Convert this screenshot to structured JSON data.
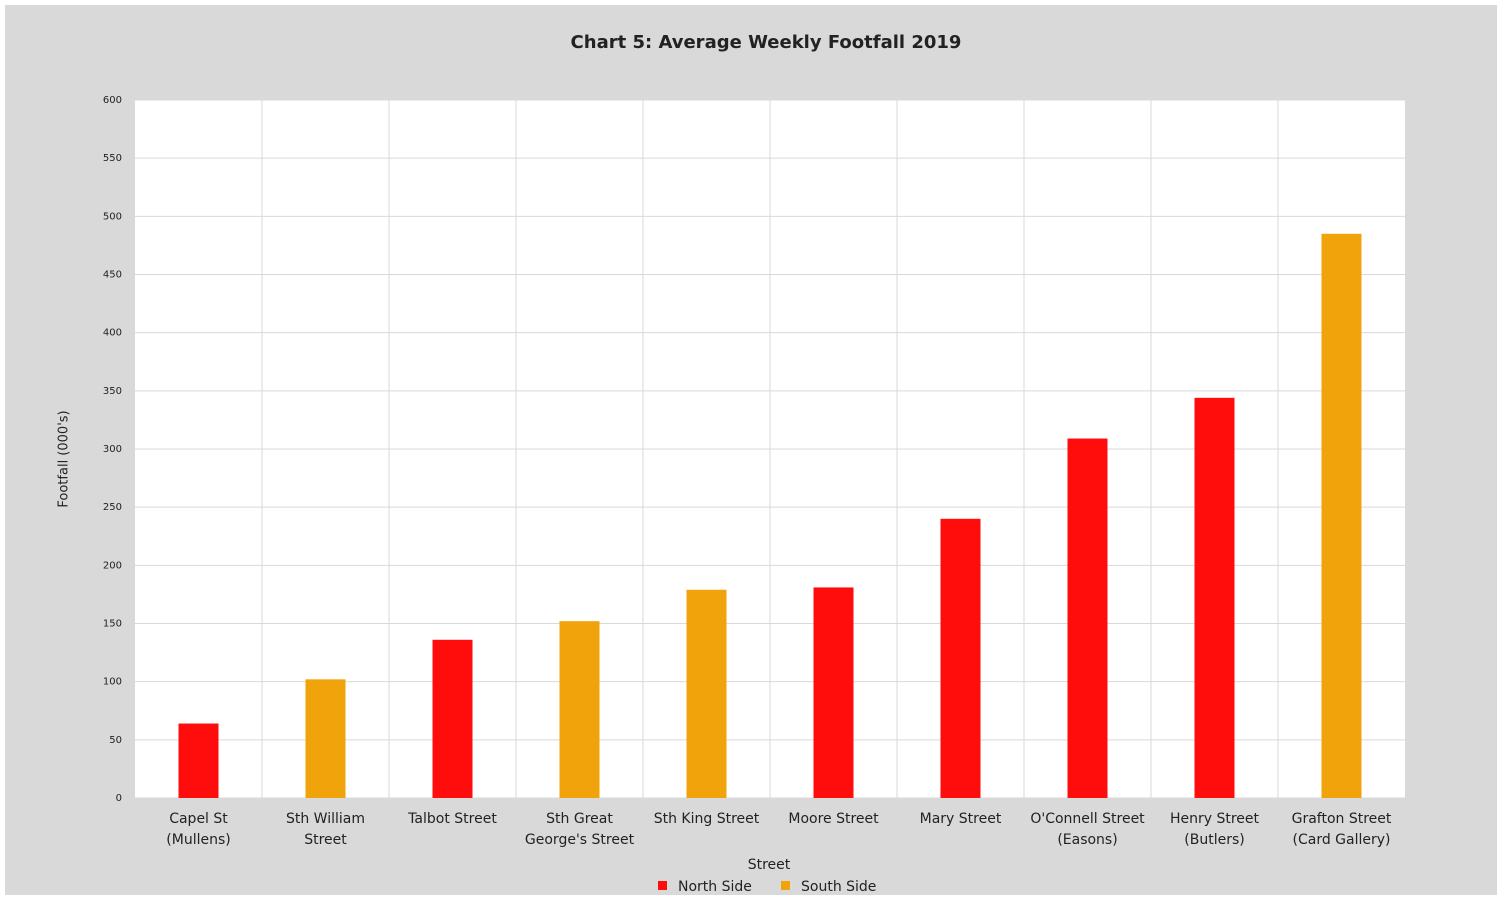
{
  "chart_data": {
    "type": "bar",
    "title": "Chart 5: Average Weekly Footfall 2019",
    "x_label": "Street",
    "y_label": "Footfall (000's)",
    "categories": [
      "Capel St (Mullens)",
      "Sth William Street",
      "Talbot Street",
      "Sth Great George's Street",
      "Sth King Street",
      "Moore Street",
      "Mary Street",
      "O'Connell Street (Easons)",
      "Henry Street (Butlers)",
      "Grafton Street (Card Gallery)"
    ],
    "series": [
      {
        "name": "North Side",
        "color": "#ff0d0d",
        "values": [
          64,
          null,
          136,
          null,
          null,
          181,
          240,
          309,
          344,
          null
        ]
      },
      {
        "name": "South Side",
        "color": "#f0a30a",
        "values": [
          null,
          102,
          null,
          152,
          179,
          null,
          null,
          null,
          null,
          485
        ]
      }
    ],
    "ylim": [
      0,
      600
    ],
    "yticks": [
      0,
      50,
      100,
      150,
      200,
      250,
      300,
      350,
      400,
      450,
      500,
      550,
      600
    ],
    "grid": true,
    "legend": "bottom"
  }
}
